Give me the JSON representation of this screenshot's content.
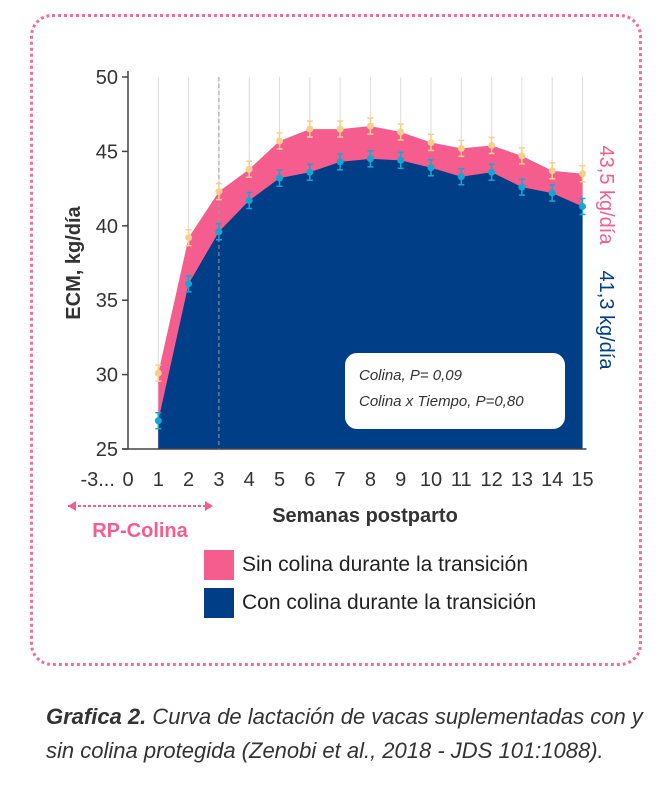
{
  "chart_data": {
    "type": "area",
    "xlabel": "Semanas postparto",
    "ylabel": "ECM, kg/día",
    "ylim": [
      25,
      50
    ],
    "yticks": [
      25,
      30,
      35,
      40,
      45,
      50
    ],
    "xticks": [
      "-3...",
      "0",
      "1",
      "2",
      "3",
      "4",
      "5",
      "6",
      "7",
      "8",
      "9",
      "10",
      "11",
      "12",
      "13",
      "14",
      "15"
    ],
    "x": [
      1,
      2,
      3,
      4,
      5,
      6,
      7,
      8,
      9,
      10,
      11,
      12,
      13,
      14,
      15
    ],
    "series": [
      {
        "name": "Sin colina durante la transición",
        "color": "#f45d8e",
        "marker_color": "#f7cf8a",
        "values": [
          30.1,
          39.2,
          42.3,
          43.8,
          45.7,
          46.5,
          46.5,
          46.7,
          46.3,
          45.6,
          45.2,
          45.4,
          44.7,
          43.7,
          43.5
        ]
      },
      {
        "name": "Con colina durante la transición",
        "color": "#003f87",
        "marker_color": "#14a7d4",
        "values": [
          26.9,
          36.1,
          39.6,
          41.7,
          43.2,
          43.6,
          44.3,
          44.5,
          44.4,
          43.9,
          43.3,
          43.6,
          42.6,
          42.2,
          41.3
        ]
      }
    ],
    "reference_line_x": 3,
    "range_annotation": "RP-Colina",
    "end_labels": [
      "43,5 kg/día",
      "41,3 kg/día"
    ],
    "stats": [
      "Colina, P= 0,09",
      "Colina x Tiempo, P=0,80"
    ]
  },
  "caption": {
    "bold": "Grafica 2.",
    "text": " Curva de lactación de vacas suplementadas con y sin colina protegida (Zenobi et al., 2018 - JDS 101:1088)."
  }
}
